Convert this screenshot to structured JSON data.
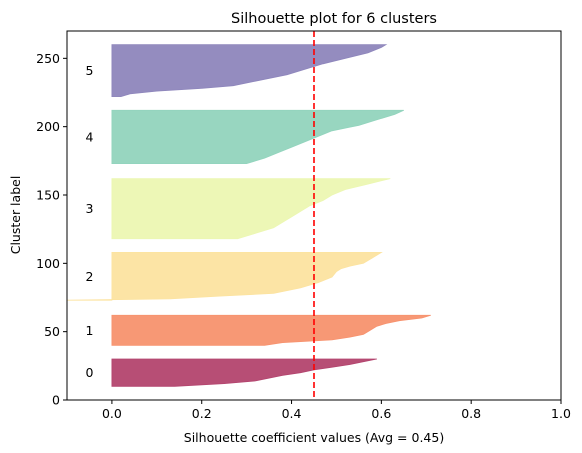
{
  "chart_data": {
    "type": "area",
    "title": "Silhouette plot for 6 clusters",
    "xlabel": "Silhouette coefficient values (Avg = 0.45)",
    "ylabel": "Cluster label",
    "xlim": [
      -0.1,
      1.0
    ],
    "ylim": [
      0,
      270
    ],
    "x_ticks": [
      "0.0",
      "0.2",
      "0.4",
      "0.6",
      "0.8",
      "1.0"
    ],
    "y_ticks": [
      "0",
      "50",
      "100",
      "150",
      "200",
      "250"
    ],
    "average_silhouette": 0.45,
    "average_line_color": "#ff0000",
    "grid": false,
    "clusters": [
      {
        "label": "0",
        "color": "#b3446e",
        "y_range": [
          10,
          30
        ],
        "profile": [
          [
            10,
            0.14
          ],
          [
            12,
            0.25
          ],
          [
            14,
            0.32
          ],
          [
            16,
            0.35
          ],
          [
            18,
            0.38
          ],
          [
            20,
            0.42
          ],
          [
            22,
            0.45
          ],
          [
            24,
            0.49
          ],
          [
            26,
            0.53
          ],
          [
            28,
            0.56
          ],
          [
            30,
            0.59
          ]
        ]
      },
      {
        "label": "1",
        "color": "#f7926e",
        "y_range": [
          40,
          62
        ],
        "profile": [
          [
            40,
            0.34
          ],
          [
            42,
            0.38
          ],
          [
            44,
            0.49
          ],
          [
            46,
            0.53
          ],
          [
            48,
            0.56
          ],
          [
            50,
            0.57
          ],
          [
            52,
            0.58
          ],
          [
            54,
            0.59
          ],
          [
            56,
            0.61
          ],
          [
            58,
            0.64
          ],
          [
            60,
            0.69
          ],
          [
            62,
            0.71
          ]
        ]
      },
      {
        "label": "2",
        "color": "#fce3a0",
        "y_range": [
          73,
          108
        ],
        "profile": [
          [
            73,
            -0.1
          ],
          [
            74,
            0.13
          ],
          [
            76,
            0.24
          ],
          [
            78,
            0.36
          ],
          [
            82,
            0.42
          ],
          [
            86,
            0.46
          ],
          [
            90,
            0.49
          ],
          [
            94,
            0.5
          ],
          [
            96,
            0.51
          ],
          [
            98,
            0.53
          ],
          [
            100,
            0.56
          ],
          [
            104,
            0.58
          ],
          [
            108,
            0.6
          ]
        ]
      },
      {
        "label": "3",
        "color": "#ecf7b2",
        "y_range": [
          118,
          162
        ],
        "profile": [
          [
            118,
            0.28
          ],
          [
            122,
            0.32
          ],
          [
            126,
            0.36
          ],
          [
            130,
            0.38
          ],
          [
            134,
            0.4
          ],
          [
            138,
            0.42
          ],
          [
            142,
            0.44
          ],
          [
            146,
            0.47
          ],
          [
            150,
            0.49
          ],
          [
            154,
            0.52
          ],
          [
            158,
            0.57
          ],
          [
            162,
            0.62
          ]
        ]
      },
      {
        "label": "4",
        "color": "#92d4bd",
        "y_range": [
          173,
          212
        ],
        "profile": [
          [
            173,
            0.3
          ],
          [
            177,
            0.34
          ],
          [
            181,
            0.37
          ],
          [
            185,
            0.4
          ],
          [
            189,
            0.43
          ],
          [
            193,
            0.46
          ],
          [
            197,
            0.49
          ],
          [
            201,
            0.55
          ],
          [
            205,
            0.59
          ],
          [
            209,
            0.63
          ],
          [
            212,
            0.65
          ]
        ]
      },
      {
        "label": "5",
        "color": "#8e86bc",
        "y_range": [
          222,
          260
        ],
        "profile": [
          [
            222,
            0.02
          ],
          [
            224,
            0.04
          ],
          [
            226,
            0.1
          ],
          [
            228,
            0.2
          ],
          [
            230,
            0.27
          ],
          [
            234,
            0.33
          ],
          [
            238,
            0.39
          ],
          [
            242,
            0.43
          ],
          [
            246,
            0.47
          ],
          [
            250,
            0.52
          ],
          [
            254,
            0.57
          ],
          [
            258,
            0.6
          ],
          [
            260,
            0.61
          ]
        ]
      }
    ]
  }
}
